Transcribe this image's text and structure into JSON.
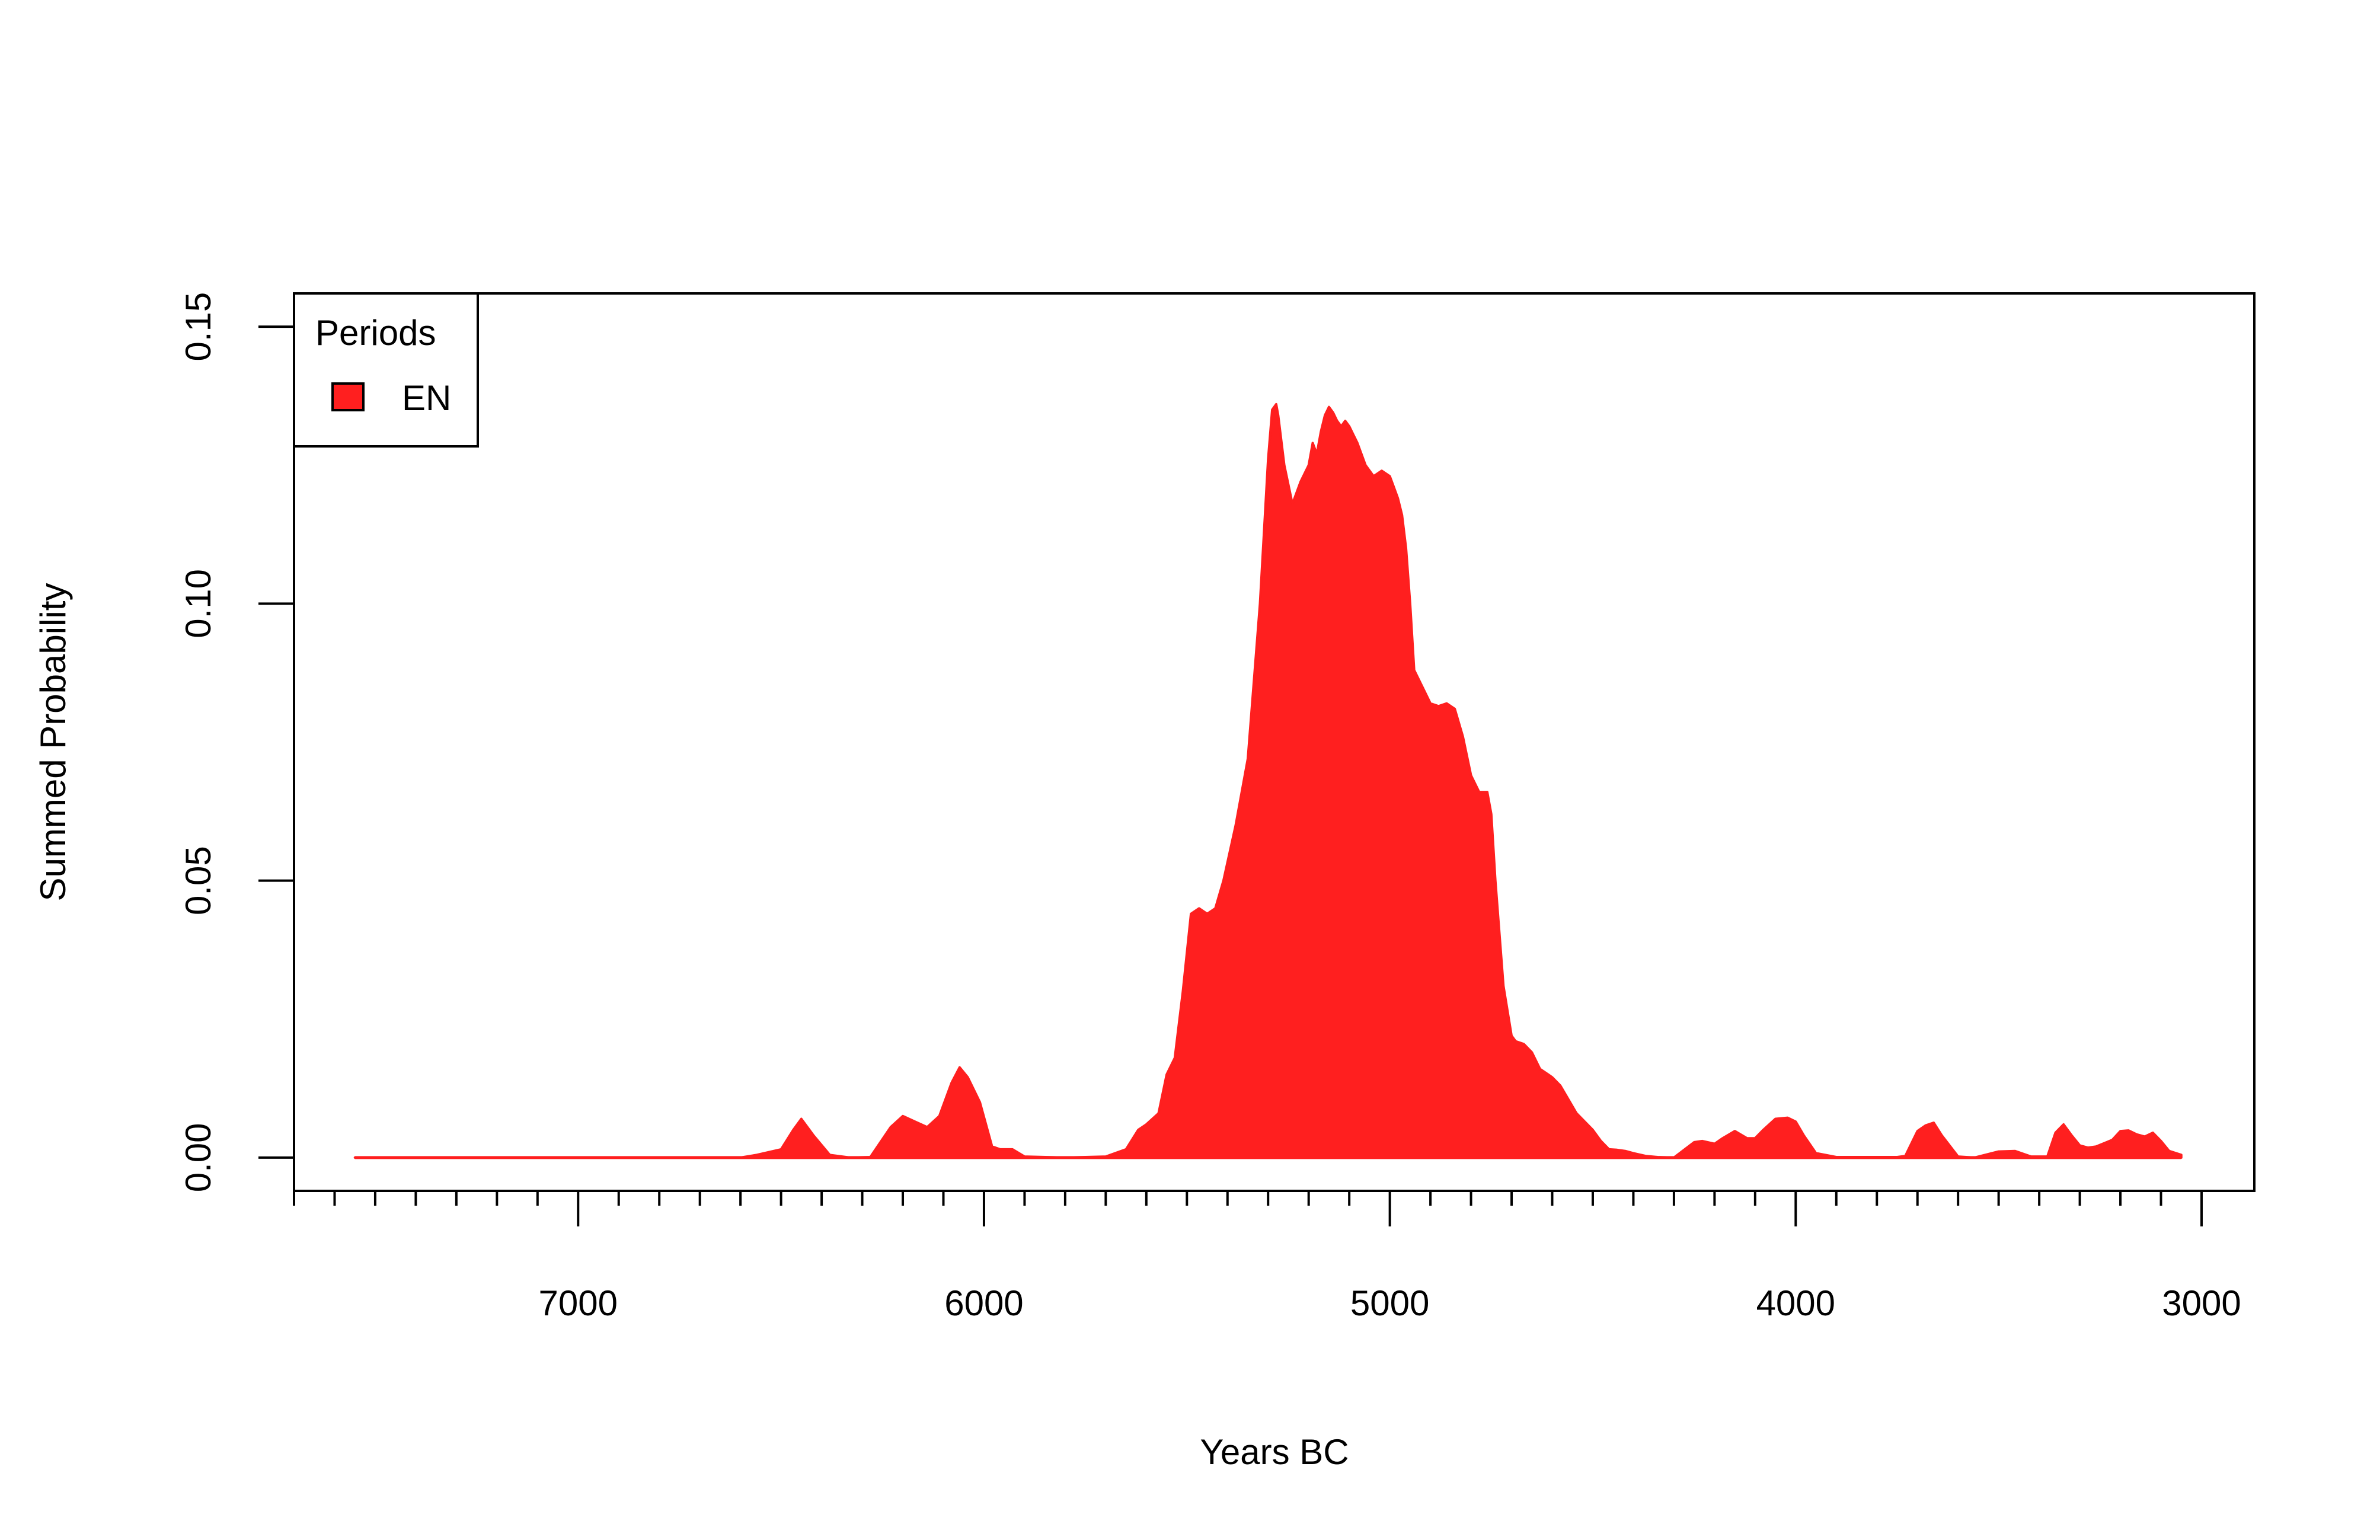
{
  "chart_data": {
    "type": "area",
    "title": "",
    "xlabel": "Years BC",
    "ylabel": "Summed Probability",
    "x_reversed": true,
    "xlim": [
      7700,
      2870
    ],
    "ylim": [
      -0.006,
      0.156
    ],
    "x_ticks": [
      7000,
      6000,
      5000,
      4000,
      3000
    ],
    "x_tick_labels": [
      "7000",
      "6000",
      "5000",
      "4000",
      "3000"
    ],
    "x_minor_ticks": [
      7700,
      7600,
      7500,
      7400,
      7300,
      7200,
      7100,
      6900,
      6800,
      6700,
      6600,
      6500,
      6400,
      6300,
      6200,
      6100,
      5900,
      5800,
      5700,
      5600,
      5500,
      5400,
      5300,
      5200,
      5100,
      4900,
      4800,
      4700,
      4600,
      4500,
      4400,
      4300,
      4200,
      4100,
      3900,
      3800,
      3700,
      3600,
      3500,
      3400,
      3300,
      3200,
      3100
    ],
    "y_ticks": [
      0.0,
      0.05,
      0.1,
      0.15
    ],
    "y_tick_labels": [
      "0.00",
      "0.05",
      "0.10",
      "0.15"
    ],
    "grid": false,
    "legend": {
      "title": "Periods",
      "placement": "top-left",
      "items": [
        "EN"
      ]
    },
    "series": [
      {
        "name": "EN",
        "color": "#FF1F1F",
        "border_color": "#000000",
        "x": [
          7550,
          7000,
          6600,
          6560,
          6500,
          6470,
          6450,
          6420,
          6380,
          6330,
          6280,
          6230,
          6200,
          6170,
          6140,
          6110,
          6080,
          6060,
          6040,
          6010,
          5980,
          5960,
          5930,
          5900,
          5800,
          5700,
          5650,
          5620,
          5600,
          5570,
          5550,
          5530,
          5510,
          5490,
          5470,
          5450,
          5430,
          5410,
          5380,
          5350,
          5320,
          5300,
          5290,
          5280,
          5275,
          5260,
          5240,
          5220,
          5200,
          5190,
          5180,
          5170,
          5160,
          5150,
          5140,
          5130,
          5120,
          5110,
          5100,
          5080,
          5060,
          5040,
          5020,
          5000,
          4990,
          4980,
          4970,
          4960,
          4950,
          4940,
          4920,
          4900,
          4880,
          4860,
          4840,
          4820,
          4800,
          4780,
          4760,
          4750,
          4740,
          4720,
          4700,
          4690,
          4670,
          4650,
          4630,
          4610,
          4600,
          4580,
          4560,
          4540,
          4520,
          4500,
          4480,
          4460,
          4440,
          4420,
          4400,
          4370,
          4340,
          4300,
          4250,
          4230,
          4200,
          4180,
          4150,
          4120,
          4100,
          4080,
          4050,
          4020,
          4000,
          3980,
          3950,
          3900,
          3800,
          3750,
          3730,
          3700,
          3680,
          3660,
          3640,
          3600,
          3560,
          3500,
          3460,
          3420,
          3380,
          3360,
          3340,
          3320,
          3300,
          3280,
          3260,
          3220,
          3200,
          3180,
          3160,
          3140,
          3120,
          3100,
          3080,
          3050
        ],
        "y": [
          0.0,
          0.0,
          0.0,
          0.0005,
          0.0015,
          0.005,
          0.007,
          0.004,
          0.0005,
          0.0,
          0.0001,
          0.0055,
          0.0075,
          0.0065,
          0.0055,
          0.0075,
          0.0135,
          0.0163,
          0.0145,
          0.01,
          0.002,
          0.0015,
          0.0015,
          0.0002,
          0.0,
          0.0002,
          0.0015,
          0.005,
          0.006,
          0.008,
          0.015,
          0.018,
          0.03,
          0.044,
          0.045,
          0.044,
          0.045,
          0.05,
          0.06,
          0.072,
          0.1,
          0.126,
          0.135,
          0.136,
          0.134,
          0.125,
          0.118,
          0.122,
          0.125,
          0.129,
          0.127,
          0.131,
          0.134,
          0.1355,
          0.1345,
          0.133,
          0.132,
          0.133,
          0.132,
          0.129,
          0.125,
          0.123,
          0.124,
          0.123,
          0.121,
          0.119,
          0.116,
          0.11,
          0.1,
          0.088,
          0.085,
          0.082,
          0.0815,
          0.082,
          0.081,
          0.076,
          0.069,
          0.066,
          0.066,
          0.062,
          0.05,
          0.031,
          0.022,
          0.021,
          0.0205,
          0.019,
          0.016,
          0.015,
          0.0145,
          0.013,
          0.0105,
          0.008,
          0.0065,
          0.005,
          0.003,
          0.0015,
          0.0014,
          0.0012,
          0.0008,
          0.0003,
          0.0001,
          0.0,
          0.0028,
          0.003,
          0.0025,
          0.0035,
          0.0048,
          0.0035,
          0.0035,
          0.005,
          0.007,
          0.0072,
          0.0065,
          0.004,
          0.0008,
          0.0001,
          0.0001,
          0.0001,
          0.0003,
          0.0048,
          0.0058,
          0.0063,
          0.004,
          0.0002,
          0.0,
          0.0011,
          0.0012,
          0.0002,
          0.0002,
          0.0045,
          0.006,
          0.004,
          0.0022,
          0.0018,
          0.002,
          0.0032,
          0.0048,
          0.0049,
          0.0042,
          0.0038,
          0.0045,
          0.003,
          0.0012,
          0.0005
        ]
      }
    ]
  }
}
